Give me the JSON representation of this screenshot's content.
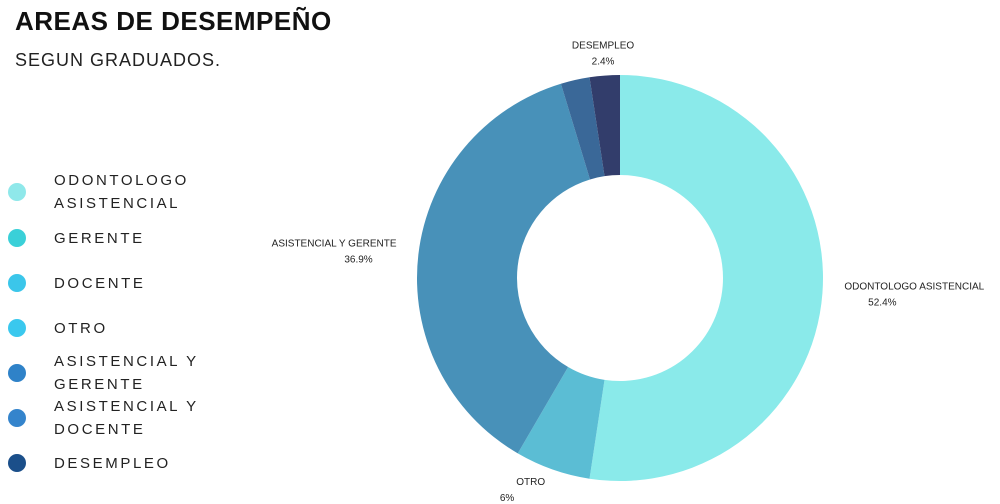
{
  "chart_data": {
    "type": "donut",
    "title": "AREAS DE DESEMPEÑO",
    "subtitle": "SEGUN GRADUADOS.",
    "categories": [
      "ODONTOLOGO ASISTENCIAL",
      "GERENTE",
      "DOCENTE",
      "OTRO",
      "ASISTENCIAL Y GERENTE",
      "ASISTENCIAL Y DOCENTE",
      "DESEMPLEO"
    ],
    "values": [
      52.4,
      0,
      0,
      6,
      36.9,
      2.3,
      2.4
    ],
    "value_labels": [
      "52.4%",
      null,
      null,
      "6%",
      "36.9%",
      null,
      "2.4%"
    ],
    "colors": [
      "#8aeaea",
      "#3ad0d8",
      "#3bc4e8",
      "#5bbdd4",
      "#4891b9",
      "#3a6898",
      "#323d6b"
    ],
    "legend_colors": [
      "#8fe8ea",
      "#3ad0d8",
      "#3bc6ea",
      "#3ac8ee",
      "#2f82c8",
      "#3484cc",
      "#1b4f8a"
    ],
    "legend": "left"
  }
}
